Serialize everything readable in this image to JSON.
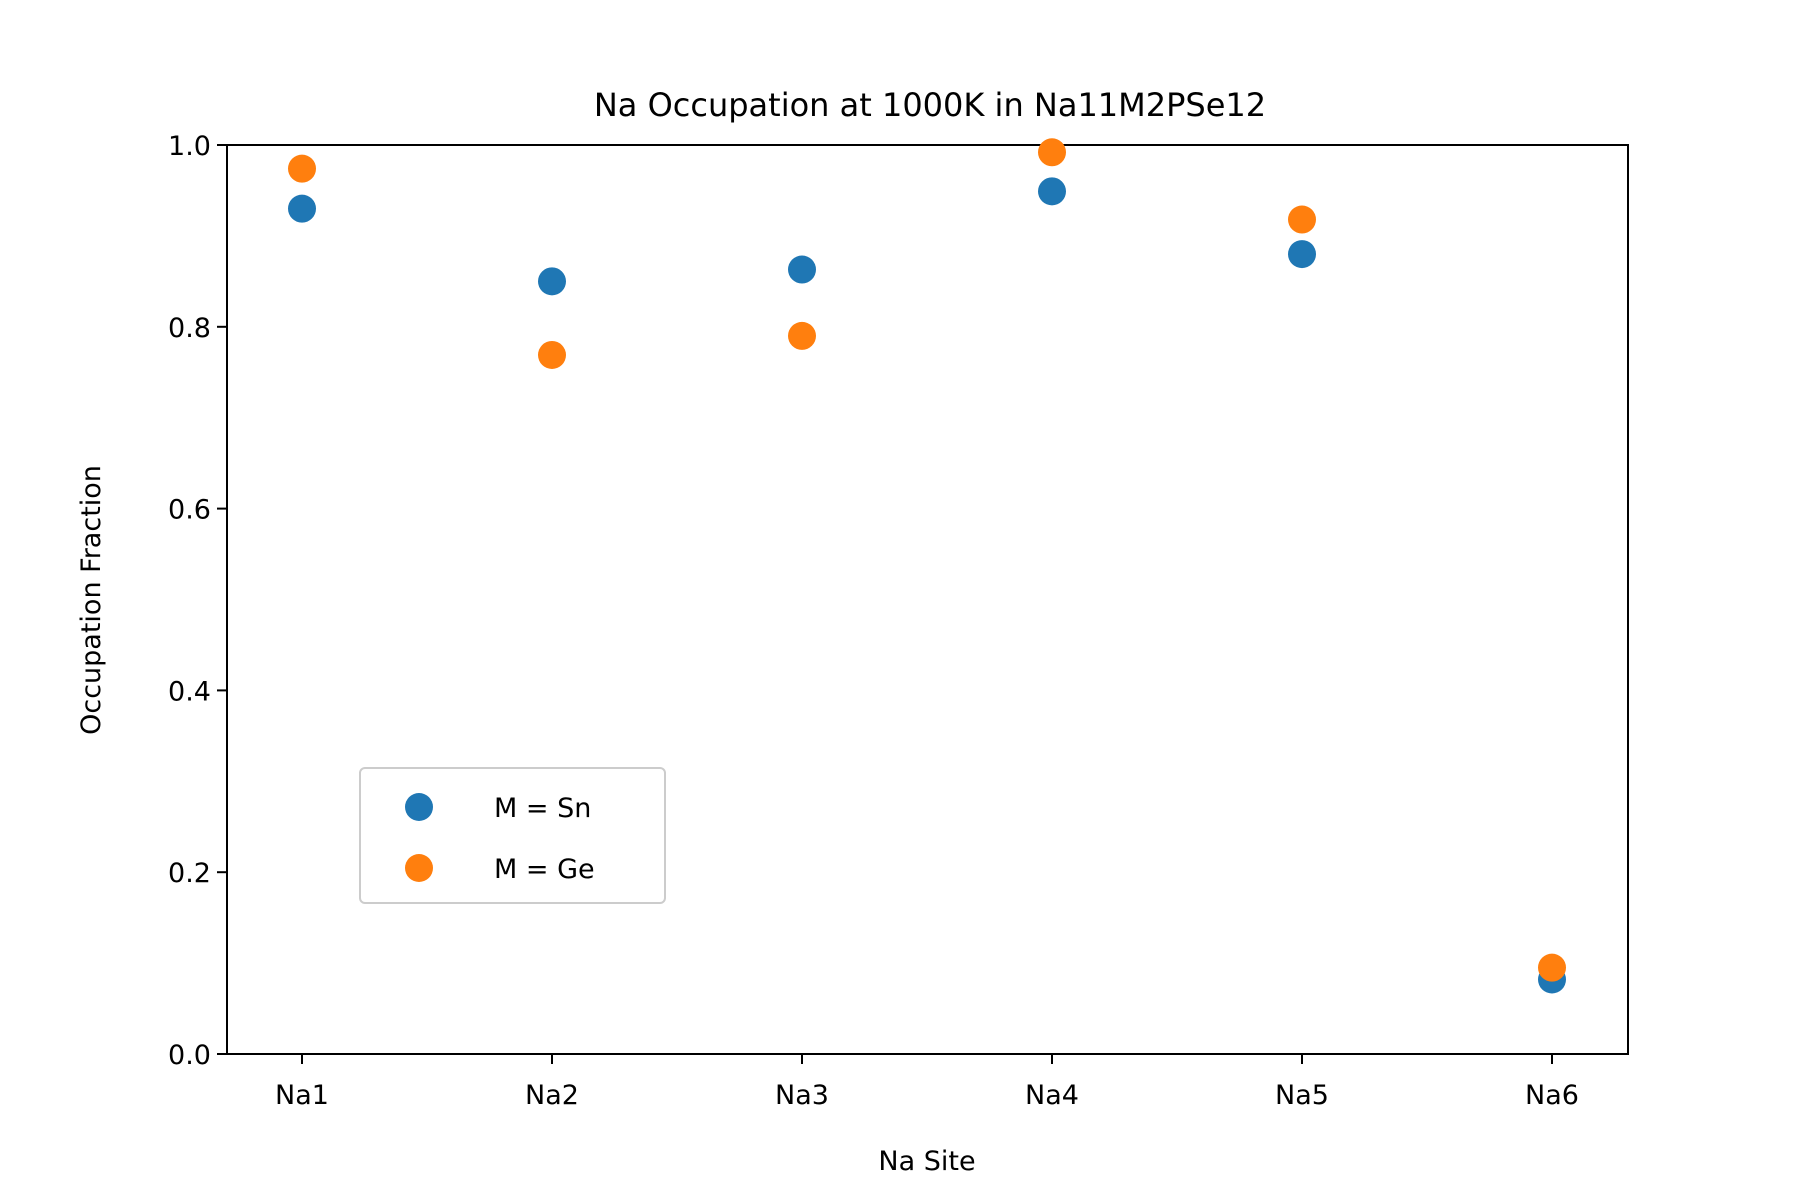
{
  "chart_data": {
    "type": "scatter",
    "title": "Na Occupation at 1000K in Na11M2PSe12",
    "xlabel": "Na Site",
    "ylabel": "Occupation Fraction",
    "categories": [
      "Na1",
      "Na2",
      "Na3",
      "Na4",
      "Na5",
      "Na6"
    ],
    "ylim": [
      0.0,
      1.0
    ],
    "yticks": [
      "0.0",
      "0.2",
      "0.4",
      "0.6",
      "0.8",
      "1.0"
    ],
    "grid": false,
    "legend_position": "lower-left",
    "series": [
      {
        "name": "M = Sn",
        "color": "#1f77b4",
        "values": [
          0.93,
          0.85,
          0.863,
          0.949,
          0.88,
          0.082
        ]
      },
      {
        "name": "M = Ge",
        "color": "#ff7f0e",
        "values": [
          0.974,
          0.769,
          0.79,
          0.992,
          0.918,
          0.095
        ]
      }
    ]
  }
}
